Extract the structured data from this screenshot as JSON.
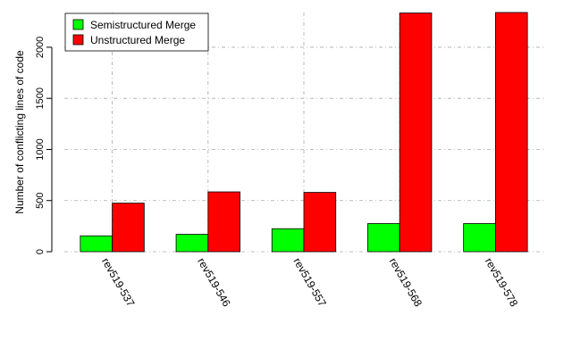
{
  "chart_data": {
    "type": "bar",
    "title": "",
    "xlabel": "",
    "ylabel": "Number of conflicting lines of code",
    "categories": [
      "rev519-537",
      "rev519-546",
      "rev519-557",
      "rev519-568",
      "rev519-578"
    ],
    "series": [
      {
        "name": "Semistructured Merge",
        "color": "#00ff00",
        "values": [
          155,
          170,
          225,
          275,
          275
        ]
      },
      {
        "name": "Unstructured Merge",
        "color": "#ff0000",
        "values": [
          475,
          585,
          580,
          2335,
          2340
        ]
      }
    ],
    "ylim": [
      0,
      2340
    ],
    "yticks": [
      0,
      500,
      1000,
      1500,
      2000
    ],
    "grid": true,
    "legend_position": "top-left"
  }
}
